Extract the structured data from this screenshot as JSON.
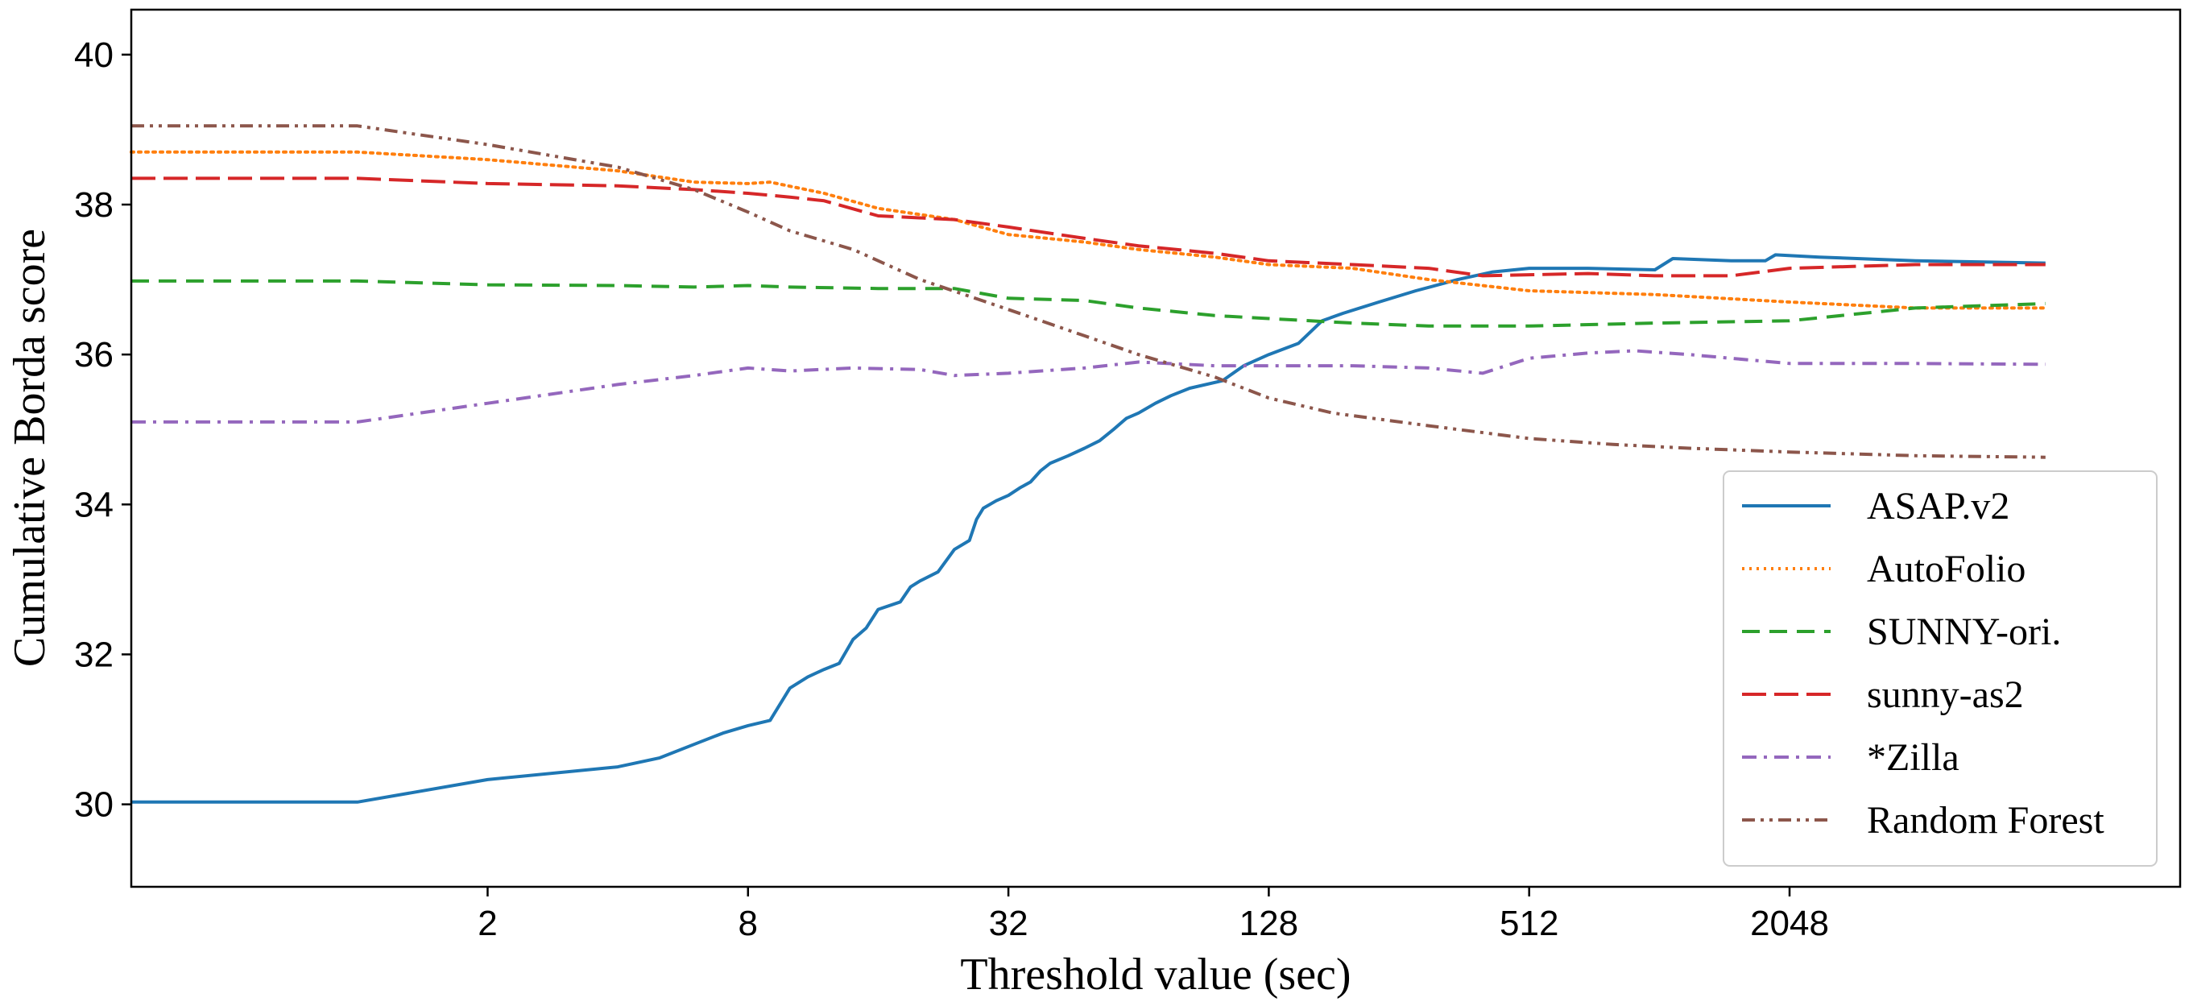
{
  "chart_data": {
    "type": "line",
    "title": "",
    "xlabel": "Threshold value (sec)",
    "ylabel": "Cumulative Borda score",
    "x_scale": "log2",
    "xlim": [
      0.3,
      16384
    ],
    "ylim": [
      28.9,
      40.6
    ],
    "x_ticks": [
      {
        "value": 2,
        "label": "2"
      },
      {
        "value": 8,
        "label": "8"
      },
      {
        "value": 32,
        "label": "32"
      },
      {
        "value": 128,
        "label": "128"
      },
      {
        "value": 512,
        "label": "512"
      },
      {
        "value": 2048,
        "label": "2048"
      }
    ],
    "y_ticks": [
      {
        "value": 30,
        "label": "30"
      },
      {
        "value": 32,
        "label": "32"
      },
      {
        "value": 34,
        "label": "34"
      },
      {
        "value": 36,
        "label": "36"
      },
      {
        "value": 38,
        "label": "38"
      },
      {
        "value": 40,
        "label": "40"
      }
    ],
    "grid": false,
    "legend_position": "lower-right",
    "series": [
      {
        "name": "ASAP.v2",
        "color": "#1f77b4",
        "dash": "solid",
        "points": [
          [
            0.3,
            30.03
          ],
          [
            1,
            30.03
          ],
          [
            2,
            30.33
          ],
          [
            4,
            30.5
          ],
          [
            5,
            30.62
          ],
          [
            6,
            30.8
          ],
          [
            7,
            30.95
          ],
          [
            8,
            31.05
          ],
          [
            9,
            31.12
          ],
          [
            10,
            31.55
          ],
          [
            11,
            31.7
          ],
          [
            12,
            31.8
          ],
          [
            13,
            31.88
          ],
          [
            14,
            32.2
          ],
          [
            15,
            32.35
          ],
          [
            16,
            32.6
          ],
          [
            18,
            32.7
          ],
          [
            19,
            32.9
          ],
          [
            20,
            32.98
          ],
          [
            22,
            33.1
          ],
          [
            24,
            33.4
          ],
          [
            26,
            33.52
          ],
          [
            27,
            33.8
          ],
          [
            28,
            33.95
          ],
          [
            30,
            34.05
          ],
          [
            32,
            34.12
          ],
          [
            34,
            34.22
          ],
          [
            36,
            34.3
          ],
          [
            38,
            34.45
          ],
          [
            40,
            34.55
          ],
          [
            44,
            34.65
          ],
          [
            48,
            34.75
          ],
          [
            52,
            34.85
          ],
          [
            56,
            35.0
          ],
          [
            60,
            35.15
          ],
          [
            64,
            35.22
          ],
          [
            70,
            35.35
          ],
          [
            76,
            35.45
          ],
          [
            84,
            35.55
          ],
          [
            100,
            35.65
          ],
          [
            112,
            35.85
          ],
          [
            128,
            36.0
          ],
          [
            150,
            36.15
          ],
          [
            170,
            36.45
          ],
          [
            190,
            36.55
          ],
          [
            230,
            36.7
          ],
          [
            280,
            36.85
          ],
          [
            350,
            37.0
          ],
          [
            420,
            37.1
          ],
          [
            512,
            37.15
          ],
          [
            700,
            37.15
          ],
          [
            1000,
            37.13
          ],
          [
            1100,
            37.28
          ],
          [
            1500,
            37.25
          ],
          [
            1800,
            37.25
          ],
          [
            1900,
            37.33
          ],
          [
            2400,
            37.3
          ],
          [
            4000,
            37.25
          ],
          [
            8000,
            37.22
          ]
        ]
      },
      {
        "name": "AutoFolio",
        "color": "#ff7f0e",
        "dash": "dotted",
        "points": [
          [
            0.3,
            38.7
          ],
          [
            1,
            38.7
          ],
          [
            2,
            38.6
          ],
          [
            4,
            38.45
          ],
          [
            6,
            38.3
          ],
          [
            8,
            38.28
          ],
          [
            9,
            38.3
          ],
          [
            12,
            38.15
          ],
          [
            16,
            37.95
          ],
          [
            24,
            37.8
          ],
          [
            32,
            37.6
          ],
          [
            48,
            37.5
          ],
          [
            64,
            37.4
          ],
          [
            96,
            37.3
          ],
          [
            128,
            37.2
          ],
          [
            200,
            37.15
          ],
          [
            300,
            37.0
          ],
          [
            512,
            36.85
          ],
          [
            1000,
            36.8
          ],
          [
            2048,
            36.7
          ],
          [
            4000,
            36.62
          ],
          [
            8000,
            36.62
          ]
        ]
      },
      {
        "name": "SUNNY-ori.",
        "color": "#2ca02c",
        "dash": "dashed",
        "points": [
          [
            0.3,
            36.98
          ],
          [
            1,
            36.98
          ],
          [
            2,
            36.93
          ],
          [
            4,
            36.92
          ],
          [
            6,
            36.9
          ],
          [
            8,
            36.92
          ],
          [
            10,
            36.9
          ],
          [
            16,
            36.88
          ],
          [
            24,
            36.88
          ],
          [
            32,
            36.75
          ],
          [
            48,
            36.72
          ],
          [
            64,
            36.62
          ],
          [
            96,
            36.52
          ],
          [
            128,
            36.48
          ],
          [
            200,
            36.42
          ],
          [
            300,
            36.38
          ],
          [
            512,
            36.38
          ],
          [
            1000,
            36.42
          ],
          [
            2048,
            36.45
          ],
          [
            4000,
            36.62
          ],
          [
            8000,
            36.68
          ]
        ]
      },
      {
        "name": "sunny-as2",
        "color": "#d62728",
        "dash": "longdash",
        "points": [
          [
            0.3,
            38.35
          ],
          [
            1,
            38.35
          ],
          [
            2,
            38.28
          ],
          [
            4,
            38.25
          ],
          [
            6,
            38.2
          ],
          [
            8,
            38.15
          ],
          [
            10,
            38.1
          ],
          [
            12,
            38.05
          ],
          [
            16,
            37.85
          ],
          [
            24,
            37.8
          ],
          [
            32,
            37.7
          ],
          [
            48,
            37.55
          ],
          [
            64,
            37.45
          ],
          [
            96,
            37.35
          ],
          [
            128,
            37.25
          ],
          [
            200,
            37.2
          ],
          [
            300,
            37.15
          ],
          [
            400,
            37.05
          ],
          [
            700,
            37.08
          ],
          [
            1000,
            37.05
          ],
          [
            1500,
            37.05
          ],
          [
            2048,
            37.15
          ],
          [
            4000,
            37.2
          ],
          [
            8000,
            37.2
          ]
        ]
      },
      {
        "name": "*Zilla",
        "color": "#9467bd",
        "dash": "dashdot",
        "points": [
          [
            0.3,
            35.1
          ],
          [
            1,
            35.1
          ],
          [
            2,
            35.35
          ],
          [
            4,
            35.6
          ],
          [
            6,
            35.72
          ],
          [
            8,
            35.82
          ],
          [
            10,
            35.78
          ],
          [
            14,
            35.82
          ],
          [
            20,
            35.8
          ],
          [
            24,
            35.72
          ],
          [
            32,
            35.75
          ],
          [
            48,
            35.82
          ],
          [
            64,
            35.9
          ],
          [
            96,
            35.85
          ],
          [
            128,
            35.85
          ],
          [
            200,
            35.85
          ],
          [
            300,
            35.82
          ],
          [
            400,
            35.75
          ],
          [
            512,
            35.95
          ],
          [
            700,
            36.02
          ],
          [
            900,
            36.05
          ],
          [
            1200,
            36.0
          ],
          [
            2048,
            35.88
          ],
          [
            4000,
            35.88
          ],
          [
            8000,
            35.87
          ]
        ]
      },
      {
        "name": "Random Forest",
        "color": "#8c564b",
        "dash": "dashdotdot",
        "points": [
          [
            0.3,
            39.05
          ],
          [
            1,
            39.05
          ],
          [
            2,
            38.8
          ],
          [
            4,
            38.5
          ],
          [
            6,
            38.2
          ],
          [
            8,
            37.9
          ],
          [
            10,
            37.65
          ],
          [
            14,
            37.4
          ],
          [
            20,
            37.0
          ],
          [
            32,
            36.6
          ],
          [
            48,
            36.25
          ],
          [
            64,
            36.0
          ],
          [
            96,
            35.7
          ],
          [
            128,
            35.42
          ],
          [
            180,
            35.22
          ],
          [
            300,
            35.05
          ],
          [
            512,
            34.88
          ],
          [
            800,
            34.8
          ],
          [
            1200,
            34.75
          ],
          [
            2048,
            34.7
          ],
          [
            4000,
            34.65
          ],
          [
            8000,
            34.63
          ]
        ]
      }
    ]
  }
}
